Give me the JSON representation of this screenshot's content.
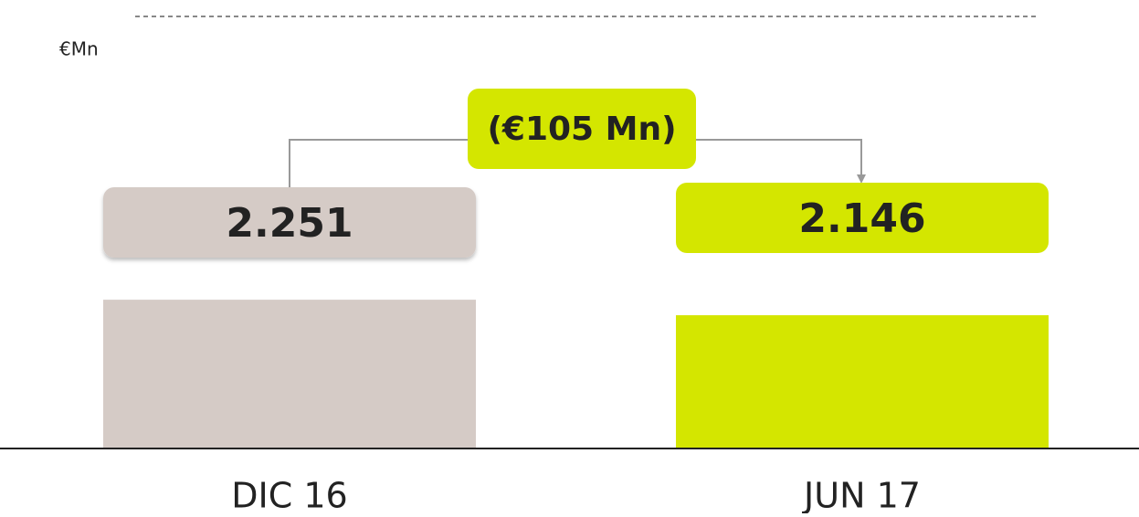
{
  "chart_data": {
    "type": "bar",
    "y_label": "€Mn",
    "annotation": "(€105 Mn)",
    "categories": [
      "DIC 16",
      "JUN 17"
    ],
    "values": [
      2251,
      2146
    ],
    "value_labels": [
      "2.251",
      "2.146"
    ],
    "colors": [
      "#d5cbc6",
      "#d4e600"
    ],
    "ylim": [
      1250,
      3000
    ]
  }
}
